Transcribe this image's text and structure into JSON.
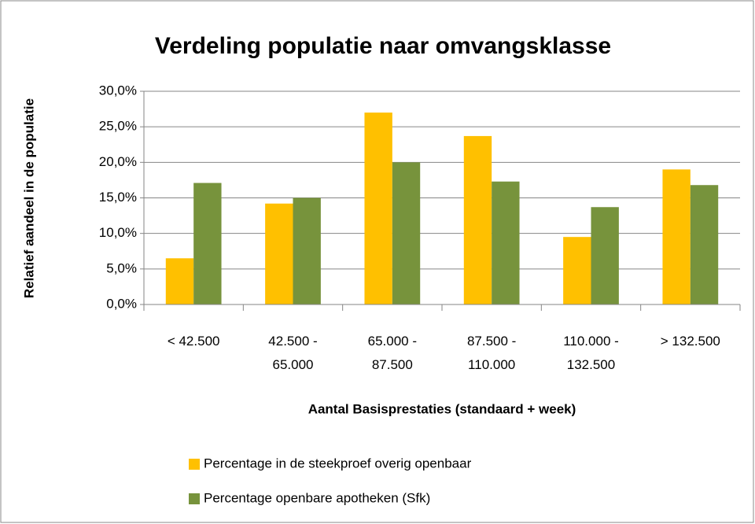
{
  "chart_data": {
    "type": "bar",
    "title": "Verdeling populatie naar omvangsklasse",
    "x_label": "Aantal Basisprestaties (standaard + week)",
    "y_label": "Relatief aandeel in de populatie",
    "categories": [
      "< 42.500",
      "42.500 - 65.000",
      "65.000 - 87.500",
      "87.500 - 110.000",
      "110.000 - 132.500",
      "> 132.500"
    ],
    "series": [
      {
        "name": "Percentage in de steekproef overig openbaar",
        "color": "#ffc000",
        "values": [
          6.5,
          14.2,
          27.0,
          23.7,
          9.5,
          19.0
        ]
      },
      {
        "name": "Percentage openbare apotheken (Sfk)",
        "color": "#77933c",
        "values": [
          17.1,
          15.0,
          20.0,
          17.3,
          13.7,
          16.8
        ]
      }
    ],
    "ylim": [
      0,
      30
    ],
    "yticks": [
      {
        "value": 0,
        "label": "0,0%"
      },
      {
        "value": 5,
        "label": "5,0%"
      },
      {
        "value": 10,
        "label": "10,0%"
      },
      {
        "value": 15,
        "label": "15,0%"
      },
      {
        "value": 20,
        "label": "20,0%"
      },
      {
        "value": 25,
        "label": "25,0%"
      },
      {
        "value": 30,
        "label": "30,0%"
      }
    ],
    "grid": true,
    "legend": "bottom"
  }
}
